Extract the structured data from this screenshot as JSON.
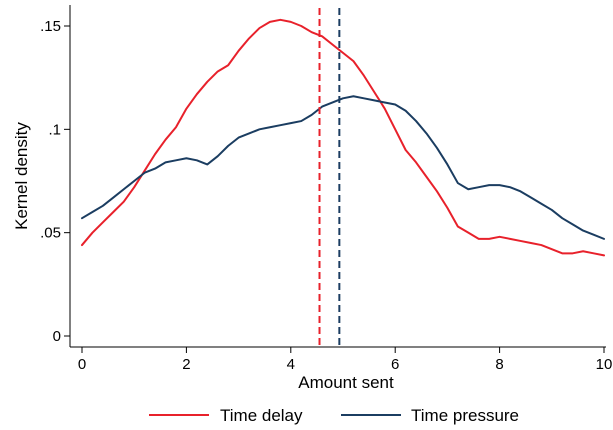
{
  "chart_data": {
    "type": "line",
    "title": "",
    "xlabel": "Amount sent",
    "ylabel": "Kernel density",
    "xlim": [
      0,
      10
    ],
    "ylim": [
      0,
      0.155
    ],
    "x_ticks": [
      0,
      2,
      4,
      6,
      8,
      10
    ],
    "x_tick_labels": [
      "0",
      "2",
      "4",
      "6",
      "8",
      "10"
    ],
    "y_ticks": [
      0,
      0.05,
      0.1,
      0.15
    ],
    "y_tick_labels": [
      "0",
      ".05",
      ".1",
      ".15"
    ],
    "grid": false,
    "legend_position": "bottom",
    "series": [
      {
        "name": "Time delay",
        "color": "#e8212b",
        "x": [
          0,
          0.2,
          0.4,
          0.6,
          0.8,
          1.0,
          1.2,
          1.4,
          1.6,
          1.8,
          2.0,
          2.2,
          2.4,
          2.6,
          2.8,
          3.0,
          3.2,
          3.4,
          3.6,
          3.8,
          4.0,
          4.2,
          4.4,
          4.6,
          4.8,
          5.0,
          5.2,
          5.4,
          5.6,
          5.8,
          6.0,
          6.2,
          6.4,
          6.6,
          6.8,
          7.0,
          7.2,
          7.4,
          7.6,
          7.8,
          8.0,
          8.2,
          8.4,
          8.6,
          8.8,
          9.0,
          9.2,
          9.4,
          9.6,
          9.8,
          10.0
        ],
        "y": [
          0.044,
          0.05,
          0.055,
          0.06,
          0.065,
          0.072,
          0.08,
          0.088,
          0.095,
          0.101,
          0.11,
          0.117,
          0.123,
          0.128,
          0.131,
          0.138,
          0.144,
          0.149,
          0.152,
          0.153,
          0.152,
          0.15,
          0.147,
          0.145,
          0.141,
          0.137,
          0.133,
          0.126,
          0.118,
          0.11,
          0.1,
          0.09,
          0.084,
          0.077,
          0.07,
          0.062,
          0.053,
          0.05,
          0.047,
          0.047,
          0.048,
          0.047,
          0.046,
          0.045,
          0.044,
          0.042,
          0.04,
          0.04,
          0.041,
          0.04,
          0.039
        ]
      },
      {
        "name": "Time pressure",
        "color": "#1b3d61",
        "x": [
          0,
          0.2,
          0.4,
          0.6,
          0.8,
          1.0,
          1.2,
          1.4,
          1.6,
          1.8,
          2.0,
          2.2,
          2.4,
          2.6,
          2.8,
          3.0,
          3.2,
          3.4,
          3.6,
          3.8,
          4.0,
          4.2,
          4.4,
          4.6,
          4.8,
          5.0,
          5.2,
          5.4,
          5.6,
          5.8,
          6.0,
          6.2,
          6.4,
          6.6,
          6.8,
          7.0,
          7.2,
          7.4,
          7.6,
          7.8,
          8.0,
          8.2,
          8.4,
          8.6,
          8.8,
          9.0,
          9.2,
          9.4,
          9.6,
          9.8,
          10.0
        ],
        "y": [
          0.057,
          0.06,
          0.063,
          0.067,
          0.071,
          0.075,
          0.079,
          0.081,
          0.084,
          0.085,
          0.086,
          0.085,
          0.083,
          0.087,
          0.092,
          0.096,
          0.098,
          0.1,
          0.101,
          0.102,
          0.103,
          0.104,
          0.107,
          0.111,
          0.113,
          0.115,
          0.116,
          0.115,
          0.114,
          0.113,
          0.112,
          0.109,
          0.104,
          0.098,
          0.091,
          0.083,
          0.074,
          0.071,
          0.072,
          0.073,
          0.073,
          0.072,
          0.07,
          0.067,
          0.064,
          0.061,
          0.057,
          0.054,
          0.051,
          0.049,
          0.047
        ]
      }
    ],
    "vertical_lines": [
      {
        "x": 4.55,
        "color": "#e8212b",
        "style": "dashed"
      },
      {
        "x": 4.93,
        "color": "#1b3d61",
        "style": "dashed"
      }
    ]
  }
}
